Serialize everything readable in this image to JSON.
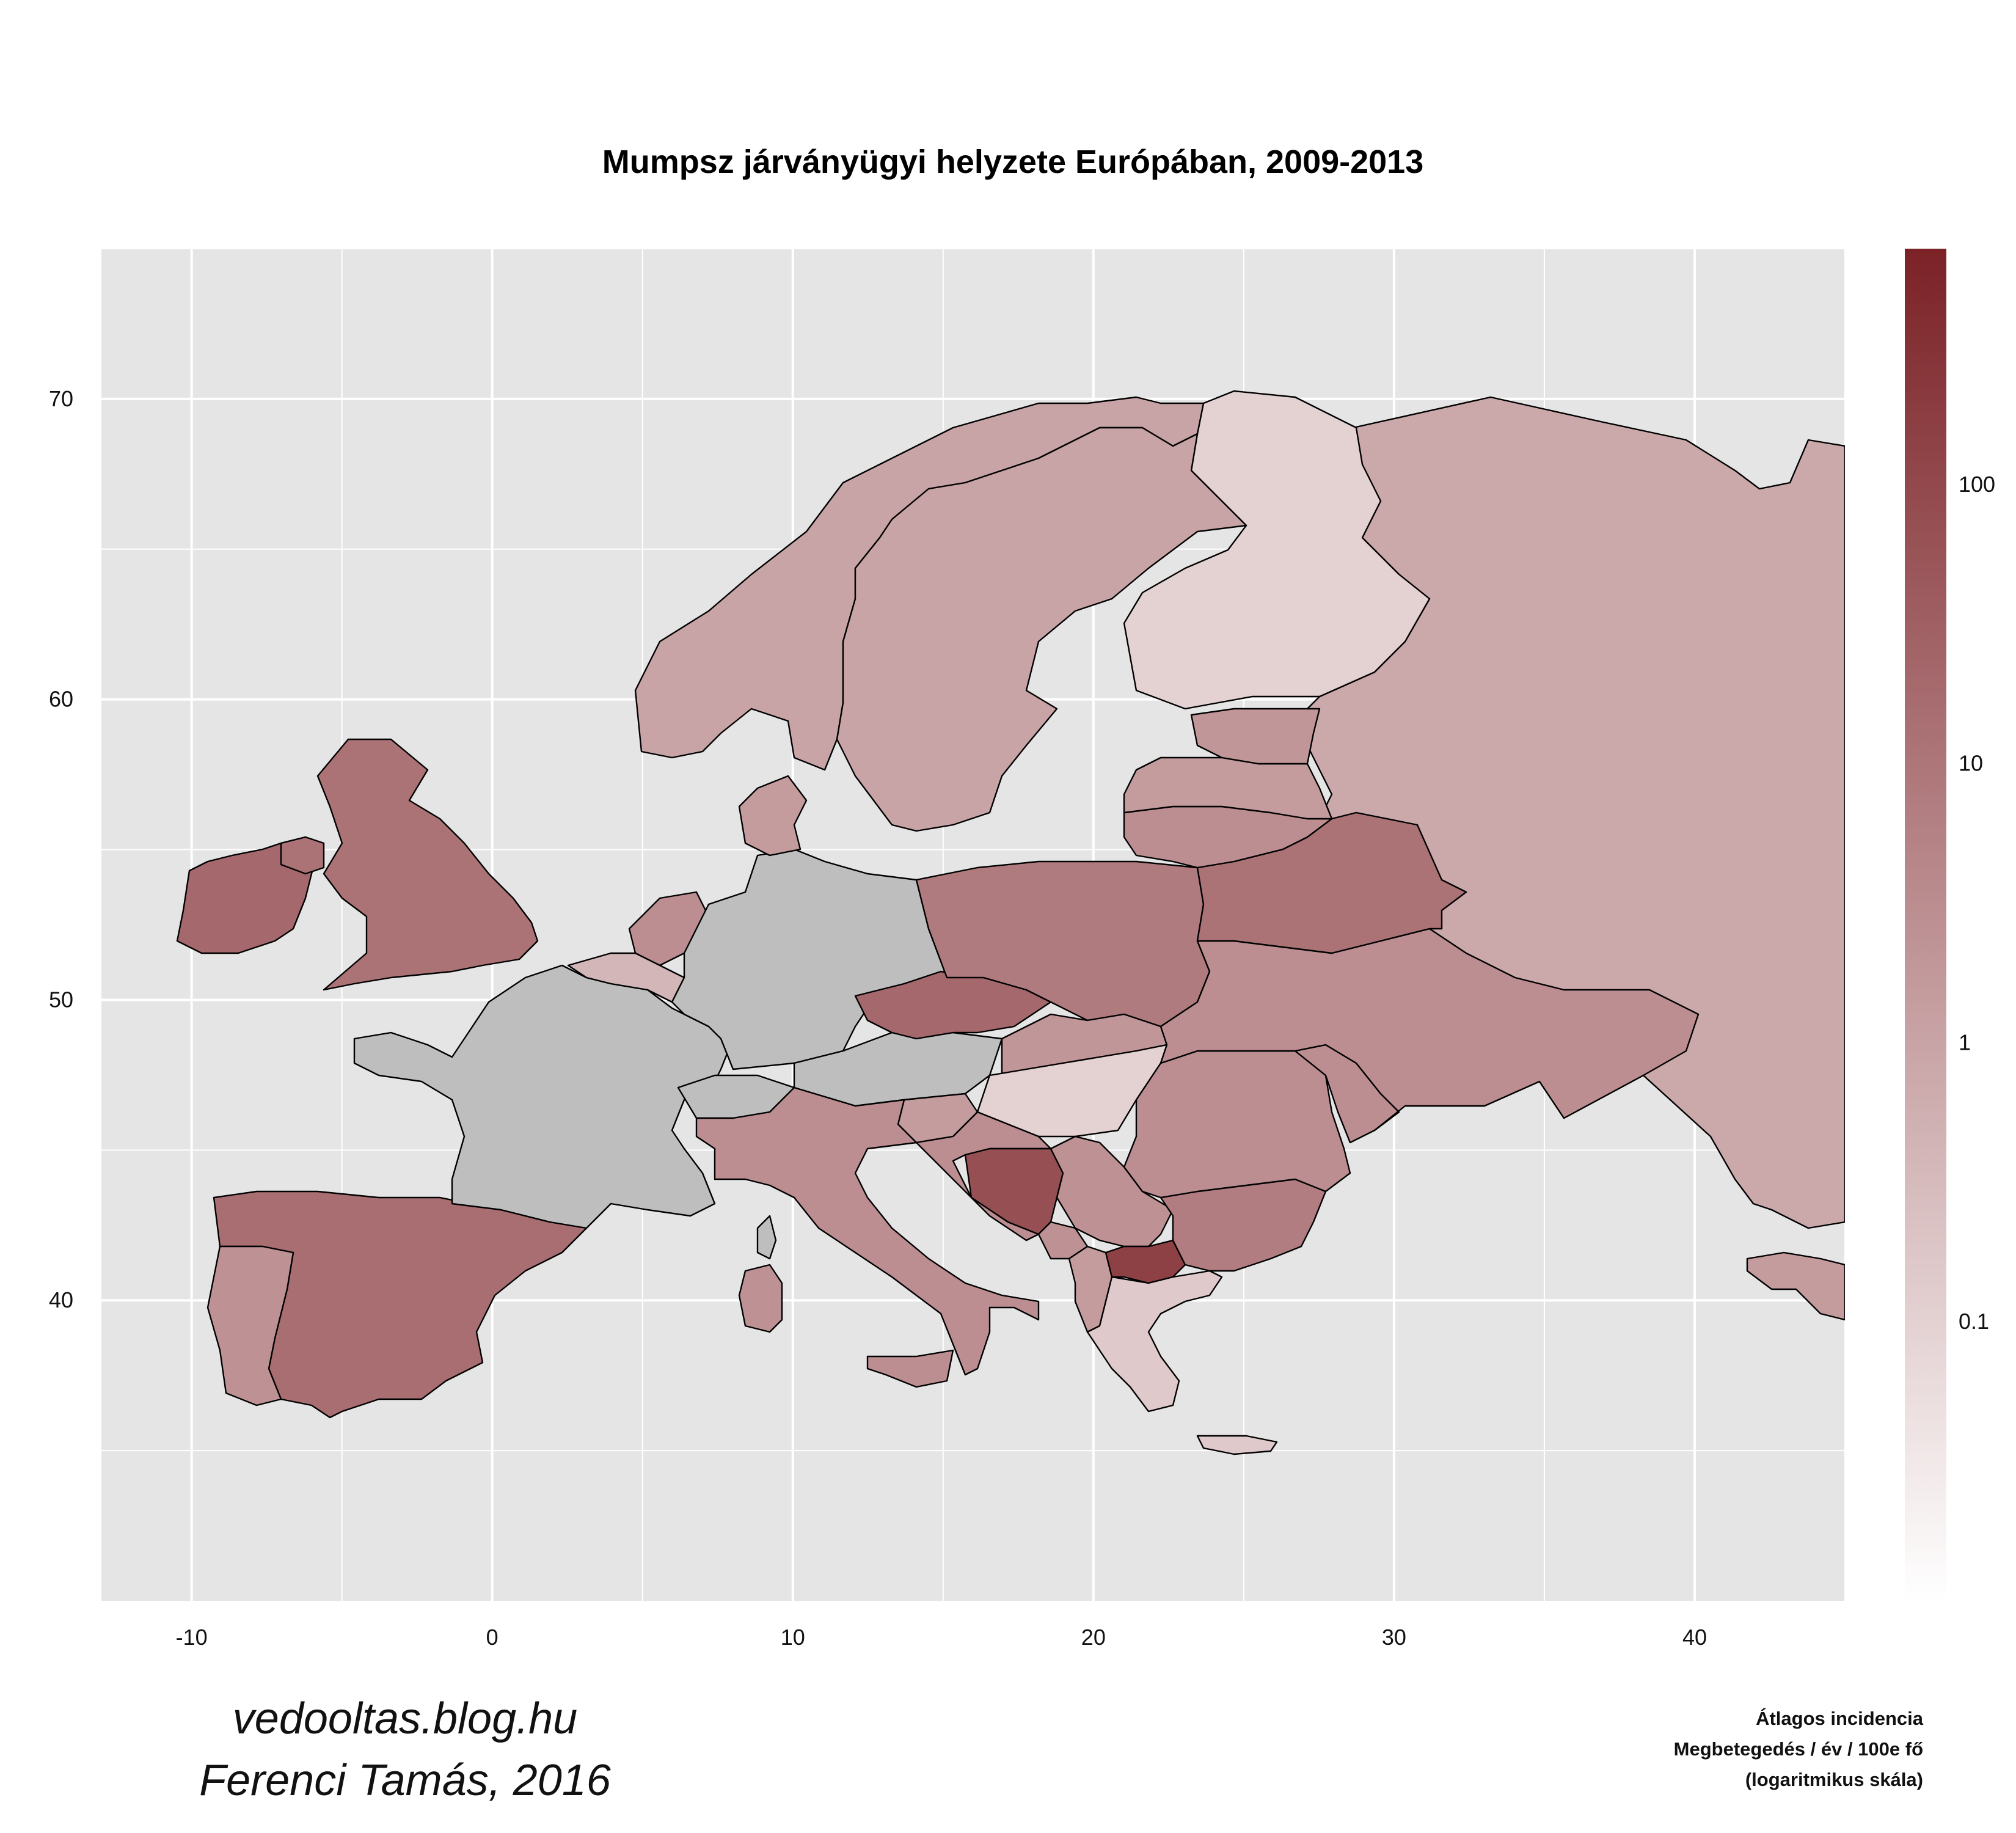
{
  "title": "Mumpsz járványügyi helyzete Európában, 2009-2013",
  "axes": {
    "x_ticks": [
      -10,
      0,
      10,
      20,
      30,
      40
    ],
    "y_ticks": [
      40,
      50,
      60,
      70
    ],
    "x_range": [
      -13,
      45
    ],
    "y_range": [
      30,
      75
    ],
    "grid": true
  },
  "legend": {
    "title_lines": [
      "Átlagos incidencia",
      "Megbetegedés / év / 100e fő",
      "(logaritmikus skála)"
    ],
    "ticks": [
      0.1,
      1,
      10,
      100
    ],
    "range": [
      0.01,
      700
    ],
    "scale": "log",
    "low_color": "#ffffff",
    "high_color": "#7b2227",
    "na_color": "#bebebe",
    "placement": "right"
  },
  "credits": [
    "vedooltas.blog.hu",
    "Ferenci Tamás, 2016"
  ],
  "colors": {
    "panel": "#e5e5e5",
    "grid": "#ffffff",
    "outline": "#000000"
  },
  "chart_data": {
    "type": "choropleth",
    "value": "Átlagos incidencia (megbetegedés / év / 100e fő)",
    "regions": [
      {
        "name": "Ireland",
        "value": 20
      },
      {
        "name": "United Kingdom",
        "value": 12
      },
      {
        "name": "Spain",
        "value": 15
      },
      {
        "name": "Portugal",
        "value": 2.5
      },
      {
        "name": "France",
        "value": null
      },
      {
        "name": "Germany",
        "value": null
      },
      {
        "name": "Switzerland",
        "value": null
      },
      {
        "name": "Austria",
        "value": null
      },
      {
        "name": "Corsica",
        "value": null
      },
      {
        "name": "Netherlands",
        "value": 3
      },
      {
        "name": "Belgium",
        "value": 0.4
      },
      {
        "name": "Luxembourg",
        "value": 0.3
      },
      {
        "name": "Denmark",
        "value": 1.5
      },
      {
        "name": "Norway",
        "value": 1
      },
      {
        "name": "Sweden",
        "value": 1
      },
      {
        "name": "Finland",
        "value": 0.1
      },
      {
        "name": "Estonia",
        "value": 2
      },
      {
        "name": "Latvia",
        "value": 1.5
      },
      {
        "name": "Lithuania",
        "value": 3
      },
      {
        "name": "Poland",
        "value": 8
      },
      {
        "name": "Czech Republic",
        "value": 20
      },
      {
        "name": "Slovakia",
        "value": 2
      },
      {
        "name": "Hungary",
        "value": 0.1
      },
      {
        "name": "Slovenia",
        "value": 1.5
      },
      {
        "name": "Croatia",
        "value": 3
      },
      {
        "name": "Bosnia and Herzegovina",
        "value": 70
      },
      {
        "name": "Serbia",
        "value": 2.5
      },
      {
        "name": "Montenegro",
        "value": 2.5
      },
      {
        "name": "Albania",
        "value": 1.5
      },
      {
        "name": "Macedonia",
        "value": 150
      },
      {
        "name": "Greece",
        "value": 0.15
      },
      {
        "name": "Bulgaria",
        "value": 7
      },
      {
        "name": "Romania",
        "value": 3
      },
      {
        "name": "Moldova",
        "value": 3
      },
      {
        "name": "Ukraine",
        "value": 3
      },
      {
        "name": "Belarus",
        "value": 12
      },
      {
        "name": "Russia",
        "value": 0.8
      },
      {
        "name": "Italy",
        "value": 3
      },
      {
        "name": "Sardinia",
        "value": 2.5
      },
      {
        "name": "Sicily",
        "value": 3
      },
      {
        "name": "Turkey",
        "value": 1.5
      }
    ]
  }
}
